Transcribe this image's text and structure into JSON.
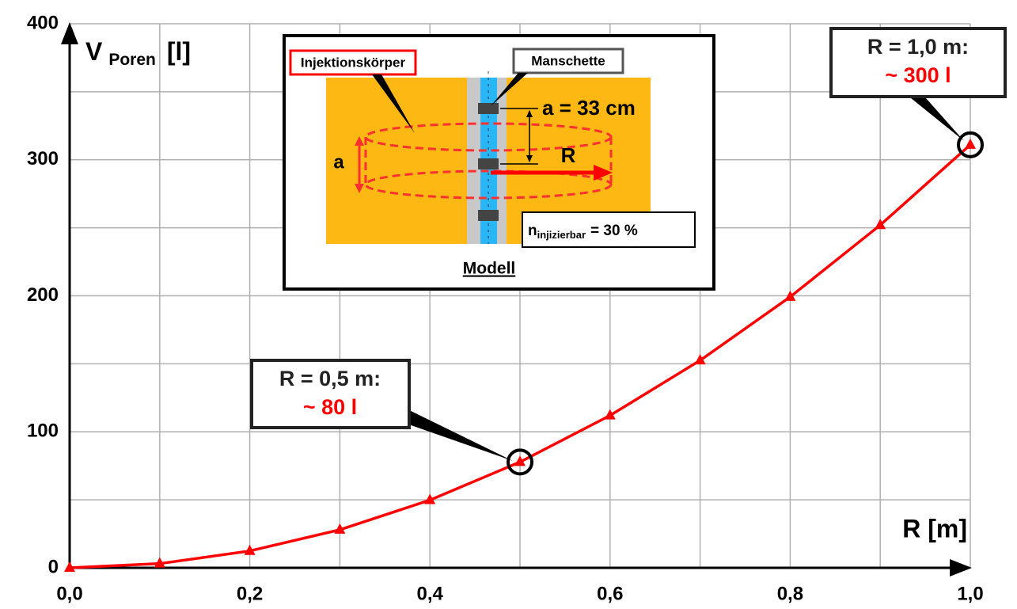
{
  "chart_data": {
    "type": "line",
    "y_label": {
      "symbol": "V",
      "subscript": "Poren",
      "unit": "[l]"
    },
    "x_label": "R [m]",
    "x": [
      0.0,
      0.1,
      0.2,
      0.3,
      0.4,
      0.5,
      0.6,
      0.7,
      0.8,
      0.9,
      1.0
    ],
    "series": [
      {
        "color": "#ff0000",
        "values": [
          0,
          3.1,
          12.4,
          28,
          49.8,
          77.8,
          112,
          152.5,
          199.2,
          252,
          311
        ]
      }
    ],
    "xlim": [
      0,
      1.0
    ],
    "ylim": [
      0,
      400
    ],
    "xticks": [
      {
        "value": 0,
        "label": "0,0"
      },
      {
        "value": 0.2,
        "label": "0,2"
      },
      {
        "value": 0.4,
        "label": "0,4"
      },
      {
        "value": 0.6,
        "label": "0,6"
      },
      {
        "value": 0.8,
        "label": "0,8"
      },
      {
        "value": 1.0,
        "label": "1,0"
      }
    ],
    "xminor_ticks": [
      0.1,
      0.3,
      0.5,
      0.7,
      0.9
    ],
    "yticks": [
      0,
      100,
      200,
      300,
      400
    ],
    "yminor_ticks": [
      50,
      150,
      250,
      350
    ],
    "grid": true,
    "annotations": [
      {
        "line1": "R = 0,5 m:",
        "line2": "~ 80 l"
      },
      {
        "line1": "R = 1,0 m:",
        "line2": "~ 300 l"
      }
    ],
    "inset": {
      "injection_body": "Injektionskörper",
      "sleeve": "Manschette",
      "spacing": "a = 33 cm",
      "height": "a",
      "radius": "R",
      "porosity": {
        "symbol": "n",
        "subscript": "injizierbar",
        "rest": "= 30 %"
      },
      "caption": "Modell"
    }
  }
}
